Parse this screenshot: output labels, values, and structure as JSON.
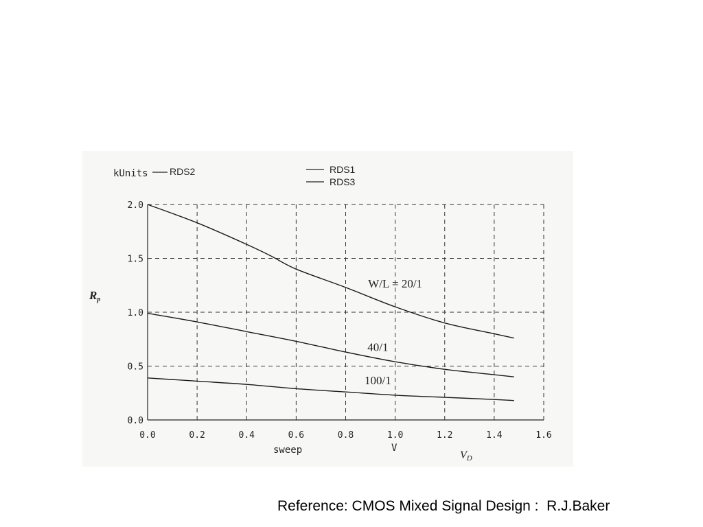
{
  "chart_data": {
    "type": "line",
    "units_label": "kUnits",
    "legend": [
      "RDS2",
      "RDS1",
      "RDS3"
    ],
    "ylabel": "R",
    "ylabel_sub": "p",
    "xlabel_left": "sweep",
    "xlabel_unit": "V",
    "xlabel_right": "V",
    "xlabel_right_sub": "D",
    "xlim": [
      0.0,
      1.6
    ],
    "ylim": [
      0.0,
      2.0
    ],
    "xticks": [
      "0.0",
      "0.2",
      "0.4",
      "0.6",
      "0.8",
      "1.0",
      "1.2",
      "1.4",
      "1.6"
    ],
    "yticks": [
      "0.0",
      "0.5",
      "1.0",
      "1.5",
      "2.0"
    ],
    "grid": true,
    "series": [
      {
        "x": [
          0.0,
          0.2,
          0.4,
          0.5,
          0.6,
          0.8,
          1.0,
          1.2,
          1.4,
          1.48
        ],
        "y": [
          2.0,
          1.83,
          1.63,
          1.52,
          1.4,
          1.23,
          1.05,
          0.9,
          0.8,
          0.76
        ]
      },
      {
        "x": [
          0.0,
          0.2,
          0.4,
          0.6,
          0.8,
          1.0,
          1.2,
          1.4,
          1.48
        ],
        "y": [
          0.99,
          0.91,
          0.82,
          0.73,
          0.63,
          0.54,
          0.47,
          0.42,
          0.4
        ]
      },
      {
        "x": [
          0.0,
          0.2,
          0.4,
          0.6,
          0.8,
          1.0,
          1.2,
          1.4,
          1.48
        ],
        "y": [
          0.39,
          0.36,
          0.33,
          0.29,
          0.26,
          0.23,
          0.21,
          0.19,
          0.18
        ]
      }
    ],
    "annotations": [
      {
        "text": "W/L = 20/1",
        "x": 1.0,
        "y": 1.23
      },
      {
        "text": "40/1",
        "x": 0.93,
        "y": 0.64
      },
      {
        "text": "100/1",
        "x": 0.93,
        "y": 0.33
      }
    ]
  },
  "reference": "Reference: CMOS Mixed Signal Design :  R.J.Baker"
}
